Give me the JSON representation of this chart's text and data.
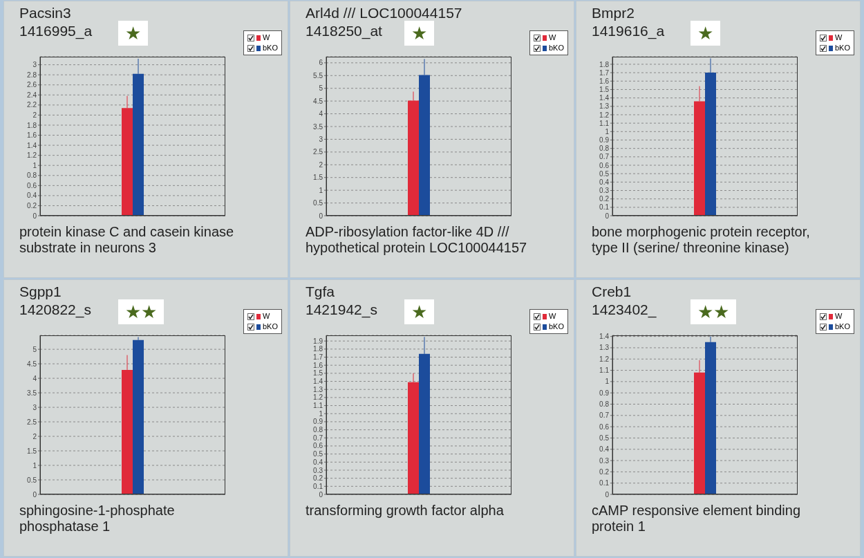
{
  "chart_data": [
    {
      "type": "bar",
      "title": "Pacsin3",
      "subtitle": "1416995_a",
      "categories": [
        null
      ],
      "series": [
        {
          "name": "W",
          "color": "#e02a3a",
          "values": [
            2.14
          ],
          "errors": [
            [
              2.14,
              2.38
            ]
          ]
        },
        {
          "name": "bKO",
          "color": "#1c4c9c",
          "values": [
            2.82
          ],
          "errors": [
            [
              2.82,
              3.12
            ]
          ]
        }
      ],
      "ylim": [
        0,
        3.16
      ],
      "yticks": [
        0,
        0.2,
        0.4,
        0.6,
        0.8,
        1,
        1.2,
        1.4,
        1.6,
        1.8,
        2,
        2.2,
        2.4,
        2.6,
        2.8,
        3
      ],
      "grid": "y",
      "legend": "top right",
      "annotations": [
        "★",
        "protein kinase C and casein kinase substrate in neurons 3"
      ]
    },
    {
      "type": "bar",
      "title": "Arl4d /// LOC100044157",
      "subtitle": "1418250_at",
      "categories": [
        null
      ],
      "series": [
        {
          "name": "W",
          "color": "#e02a3a",
          "values": [
            4.52
          ],
          "errors": [
            [
              4.52,
              4.87
            ]
          ]
        },
        {
          "name": "bKO",
          "color": "#1c4c9c",
          "values": [
            5.52
          ],
          "errors": [
            [
              5.52,
              6.15
            ]
          ]
        }
      ],
      "ylim": [
        0,
        6.24
      ],
      "yticks": [
        0,
        0.5,
        1,
        1.5,
        2,
        2.5,
        3,
        3.5,
        4,
        4.5,
        5,
        5.5,
        6
      ],
      "grid": "y",
      "legend": "top right",
      "annotations": [
        "★",
        "ADP-ribosylation factor-like 4D /// hypothetical protein LOC100044157"
      ]
    },
    {
      "type": "bar",
      "title": "Bmpr2",
      "subtitle": "1419616_a",
      "categories": [
        null
      ],
      "series": [
        {
          "name": "W",
          "color": "#e02a3a",
          "values": [
            1.36
          ],
          "errors": [
            [
              1.36,
              1.54
            ]
          ]
        },
        {
          "name": "bKO",
          "color": "#1c4c9c",
          "values": [
            1.7
          ],
          "errors": [
            [
              1.7,
              1.87
            ]
          ]
        }
      ],
      "ylim": [
        0,
        1.89
      ],
      "yticks": [
        0,
        0.1,
        0.2,
        0.3,
        0.4,
        0.5,
        0.6,
        0.7,
        0.8,
        0.9,
        1,
        1.1,
        1.2,
        1.3,
        1.4,
        1.5,
        1.6,
        1.7,
        1.8
      ],
      "grid": "y",
      "legend": "top right",
      "annotations": [
        "★",
        "bone morphogenic protein receptor, type II (serine/ threonine kinase)"
      ]
    },
    {
      "type": "bar",
      "title": "Sgpp1",
      "subtitle": "1420822_s",
      "categories": [
        null
      ],
      "series": [
        {
          "name": "W",
          "color": "#e02a3a",
          "values": [
            4.29
          ],
          "errors": [
            [
              4.29,
              4.8
            ]
          ]
        },
        {
          "name": "bKO",
          "color": "#1c4c9c",
          "values": [
            5.32
          ],
          "errors": [
            [
              5.32,
              5.42
            ]
          ]
        }
      ],
      "ylim": [
        0,
        5.48
      ],
      "yticks": [
        0,
        0.5,
        1,
        1.5,
        2,
        2.5,
        3,
        3.5,
        4,
        4.5,
        5
      ],
      "grid": "y",
      "legend": "top right",
      "annotations": [
        "★★",
        "sphingosine-1-phosphate phosphatase 1"
      ]
    },
    {
      "type": "bar",
      "title": "Tgfa",
      "subtitle": "1421942_s",
      "categories": [
        null
      ],
      "series": [
        {
          "name": "W",
          "color": "#e02a3a",
          "values": [
            1.39
          ],
          "errors": [
            [
              1.39,
              1.5
            ]
          ]
        },
        {
          "name": "bKO",
          "color": "#1c4c9c",
          "values": [
            1.74
          ],
          "errors": [
            [
              1.74,
              1.95
            ]
          ]
        }
      ],
      "ylim": [
        0,
        1.97
      ],
      "yticks": [
        0,
        0.1,
        0.2,
        0.3,
        0.4,
        0.5,
        0.6,
        0.7,
        0.8,
        0.9,
        1,
        1.1,
        1.2,
        1.3,
        1.4,
        1.5,
        1.6,
        1.7,
        1.8,
        1.9
      ],
      "grid": "y",
      "legend": "top right",
      "annotations": [
        "★",
        "transforming growth factor alpha"
      ]
    },
    {
      "type": "bar",
      "title": "Creb1",
      "subtitle": "1423402_",
      "categories": [
        null
      ],
      "series": [
        {
          "name": "W",
          "color": "#e02a3a",
          "values": [
            1.08
          ],
          "errors": [
            [
              1.08,
              1.19
            ]
          ]
        },
        {
          "name": "bKO",
          "color": "#1c4c9c",
          "values": [
            1.35
          ],
          "errors": [
            [
              1.35,
              1.4
            ]
          ]
        }
      ],
      "ylim": [
        0,
        1.41
      ],
      "yticks": [
        0,
        0.1,
        0.2,
        0.3,
        0.4,
        0.5,
        0.6,
        0.7,
        0.8,
        0.9,
        1,
        1.1,
        1.2,
        1.3,
        1.4
      ],
      "grid": "y",
      "legend": "top right",
      "annotations": [
        "★★",
        "cAMP responsive element binding protein 1"
      ]
    }
  ]
}
